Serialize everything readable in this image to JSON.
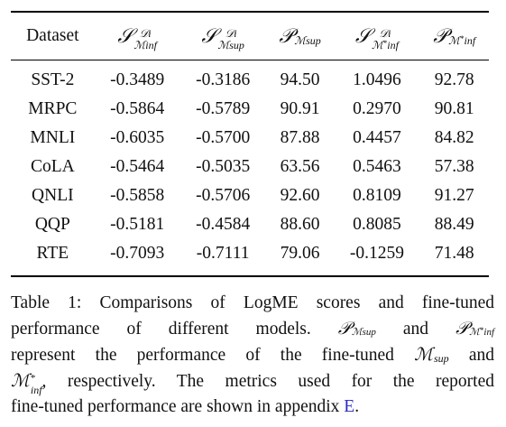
{
  "table": {
    "headers": [
      "Dataset",
      "S^{D_i}_{M_inf}",
      "S^{D_i}_{M_sup}",
      "P_{M_sup}",
      "S^{D_i}_{M*_inf}",
      "P_{M*_inf}"
    ],
    "rows": [
      {
        "dataset": "SST-2",
        "s_inf": "-0.3489",
        "s_sup": "-0.3186",
        "p_sup": "94.50",
        "s_inf_star": "1.0496",
        "p_inf_star": "92.78"
      },
      {
        "dataset": "MRPC",
        "s_inf": "-0.5864",
        "s_sup": "-0.5789",
        "p_sup": "90.91",
        "s_inf_star": "0.2970",
        "p_inf_star": "90.81"
      },
      {
        "dataset": "MNLI",
        "s_inf": "-0.6035",
        "s_sup": "-0.5700",
        "p_sup": "87.88",
        "s_inf_star": "0.4457",
        "p_inf_star": "84.82"
      },
      {
        "dataset": "CoLA",
        "s_inf": "-0.5464",
        "s_sup": "-0.5035",
        "p_sup": "63.56",
        "s_inf_star": "0.5463",
        "p_inf_star": "57.38"
      },
      {
        "dataset": "QNLI",
        "s_inf": "-0.5858",
        "s_sup": "-0.5706",
        "p_sup": "92.60",
        "s_inf_star": "0.8109",
        "p_inf_star": "91.27"
      },
      {
        "dataset": "QQP",
        "s_inf": "-0.5181",
        "s_sup": "-0.4584",
        "p_sup": "88.60",
        "s_inf_star": "0.8085",
        "p_inf_star": "88.49"
      },
      {
        "dataset": "RTE",
        "s_inf": "-0.7093",
        "s_sup": "-0.7111",
        "p_sup": "79.06",
        "s_inf_star": "-0.1259",
        "p_inf_star": "71.48"
      }
    ]
  },
  "caption": {
    "line1": "Table 1: Comparisons of LogME scores and fine-tuned",
    "line2a": "performance of different models.",
    "line2b": "and",
    "line3": "represent the performance of the fine-tuned",
    "line3b": "and",
    "line4": ", respectively. The metrics used for the reported",
    "line5": "fine-tuned performance are shown in appendix",
    "ref": "E",
    "end": "."
  }
}
